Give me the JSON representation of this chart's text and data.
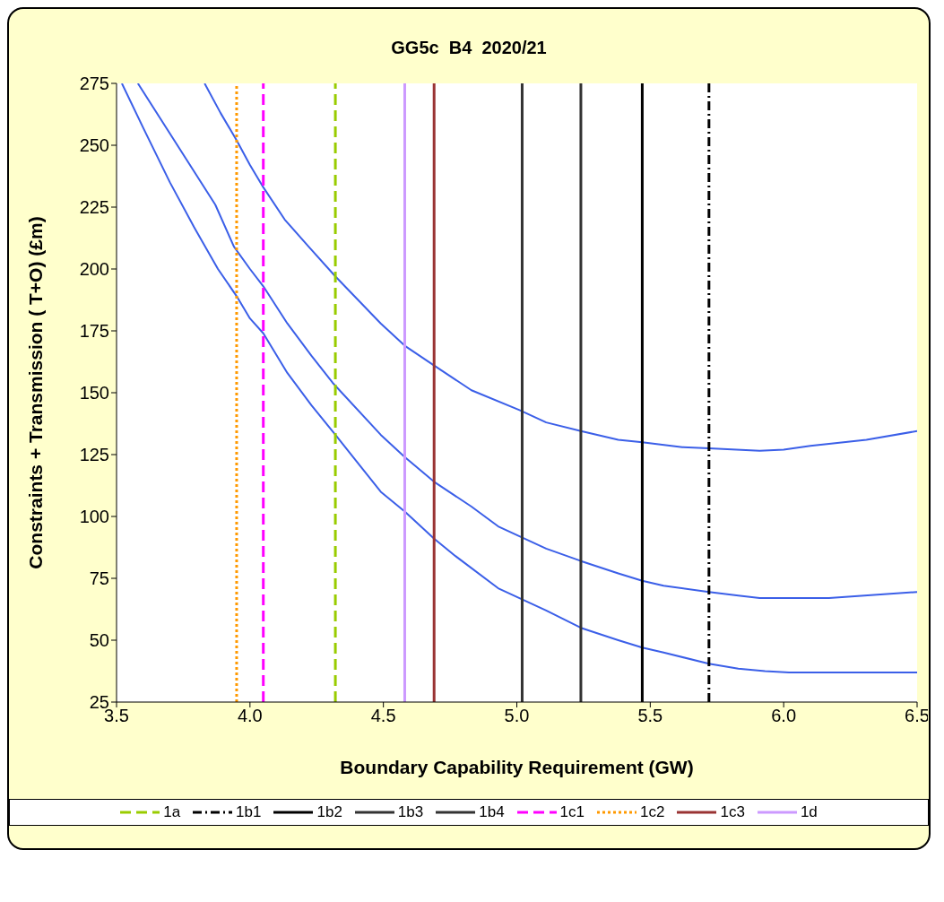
{
  "chart_data": {
    "type": "line",
    "title": "GG5c  B4  2020/21",
    "xlabel": "Boundary Capability Requirement  (GW)",
    "ylabel": "Constraints + Transmission  ( T+O)  (£m)",
    "xlim": [
      3.5,
      6.5
    ],
    "xticks": [
      3.5,
      {
        "value": 4,
        "label": "4.0"
      },
      4.5,
      {
        "value": 5,
        "label": "5.0"
      },
      5.5,
      {
        "value": 6,
        "label": "6.0"
      },
      6.5
    ],
    "ylim": [
      25,
      275
    ],
    "yticks": [
      25,
      50,
      75,
      100,
      125,
      150,
      175,
      200,
      225,
      250,
      275
    ],
    "grid": false,
    "legend": "bottom",
    "marker": "none",
    "series": [
      {
        "color": "#3b5fe8",
        "line_style": "solid",
        "x": [
          3.83,
          3.89,
          3.95,
          4.0,
          4.05,
          4.13,
          4.22,
          4.32,
          4.49,
          4.58,
          4.69,
          4.83,
          5.01,
          5.11,
          5.24,
          5.38,
          5.47,
          5.62,
          5.72,
          5.91,
          6.0,
          6.1,
          6.31,
          6.5
        ],
        "values": [
          275,
          263,
          252,
          242,
          233,
          220,
          209,
          197,
          178,
          169,
          161,
          151,
          143,
          138,
          134.5,
          131,
          130,
          128,
          127.5,
          126.5,
          127,
          128.5,
          131,
          134.5
        ]
      },
      {
        "color": "#3b5fe8",
        "line_style": "solid",
        "x": [
          3.58,
          3.87,
          3.94,
          4.0,
          4.05,
          4.14,
          4.23,
          4.31,
          4.49,
          4.58,
          4.69,
          4.83,
          4.93,
          5.01,
          5.11,
          5.24,
          5.38,
          5.47,
          5.55,
          5.72,
          5.83,
          5.91,
          6.17,
          6.5
        ],
        "values": [
          275,
          226,
          209,
          200,
          193,
          178,
          165,
          154,
          133,
          124,
          114,
          104,
          96,
          92,
          87,
          82,
          77,
          74,
          72,
          69.5,
          68,
          67,
          67,
          69.5
        ]
      },
      {
        "color": "#3b5fe8",
        "line_style": "solid",
        "x": [
          3.52,
          3.6,
          3.7,
          3.79,
          3.88,
          3.95,
          4.0,
          4.05,
          4.14,
          4.23,
          4.32,
          4.49,
          4.58,
          4.69,
          4.77,
          4.93,
          5.01,
          5.11,
          5.24,
          5.38,
          5.47,
          5.55,
          5.72,
          5.83,
          5.93,
          6.02,
          6.5
        ],
        "values": [
          275,
          257,
          235,
          217,
          200,
          189,
          180,
          174,
          158,
          145,
          133,
          110,
          102,
          91,
          84,
          71,
          67,
          62,
          55,
          50,
          47,
          45,
          40.5,
          38.5,
          37.5,
          37,
          37
        ]
      },
      {
        "name": "1a",
        "color": "#99cc00",
        "line_style": "dashed",
        "x": [
          4.32,
          4.32
        ],
        "values": [
          25,
          275
        ]
      },
      {
        "name": "1b1",
        "color": "#000000",
        "line_style": "dashdot",
        "x": [
          5.72,
          5.72
        ],
        "values": [
          25,
          275
        ]
      },
      {
        "name": "1b2",
        "color": "#000000",
        "line_style": "solid",
        "x": [
          5.47,
          5.47
        ],
        "values": [
          25,
          275
        ]
      },
      {
        "name": "1b3",
        "color": "#333333",
        "line_style": "solid",
        "x": [
          5.24,
          5.24
        ],
        "values": [
          25,
          275
        ]
      },
      {
        "name": "1b4",
        "color": "#333333",
        "line_style": "solid",
        "x": [
          5.02,
          5.02
        ],
        "values": [
          25,
          275
        ]
      },
      {
        "name": "1c1",
        "color": "#ff00ff",
        "line_style": "dashed",
        "x": [
          4.05,
          4.05
        ],
        "values": [
          25,
          275
        ]
      },
      {
        "name": "1c2",
        "color": "#ff9900",
        "line_style": "dotted",
        "x": [
          3.95,
          3.95
        ],
        "values": [
          25,
          275
        ]
      },
      {
        "name": "1c3",
        "color": "#993333",
        "line_style": "solid",
        "x": [
          4.69,
          4.69
        ],
        "values": [
          25,
          275
        ]
      },
      {
        "name": "1d",
        "color": "#cc99ff",
        "line_style": "solid",
        "x": [
          4.58,
          4.58
        ],
        "values": [
          25,
          275
        ]
      }
    ]
  }
}
